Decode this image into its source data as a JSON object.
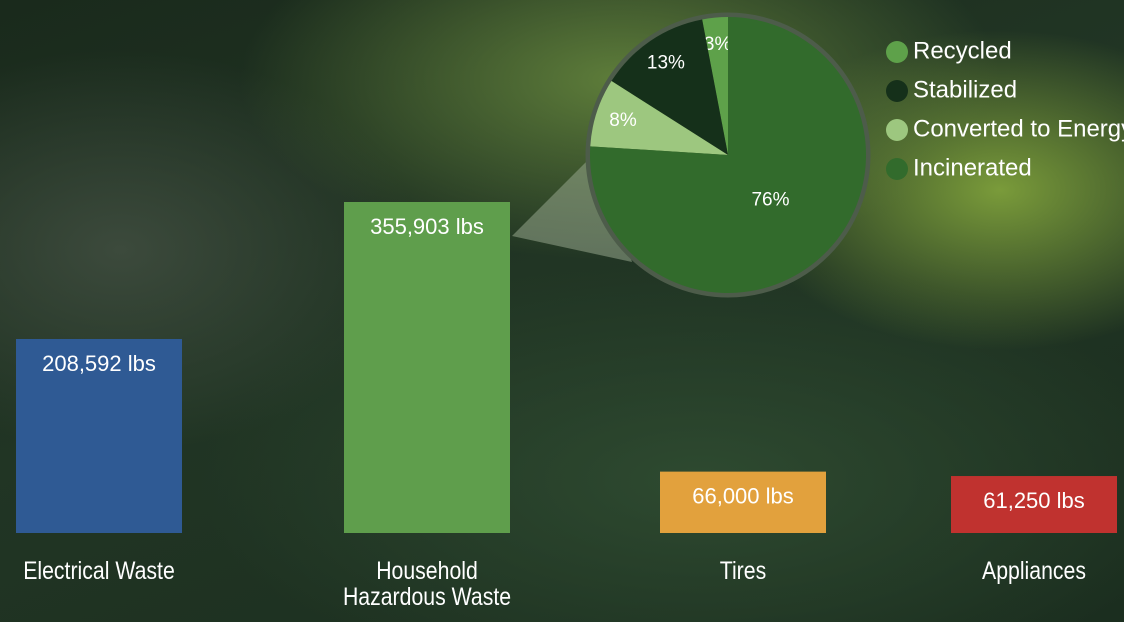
{
  "chart_data": [
    {
      "type": "bar",
      "categories": [
        "Electrical Waste",
        "Household Hazardous Waste",
        "Tires",
        "Appliances"
      ],
      "values": [
        208592,
        355903,
        66000,
        61250
      ],
      "value_labels": [
        "208,592 lbs",
        "355,903 lbs",
        "66,000 lbs",
        "61,250 lbs"
      ],
      "colors": [
        "#2f5a94",
        "#5f9e4c",
        "#e2a13d",
        "#c0322f"
      ]
    },
    {
      "type": "pie",
      "categories": [
        "Recycled",
        "Stabilized",
        "Converted to Energy",
        "Incinerated"
      ],
      "values": [
        3,
        13,
        8,
        76
      ],
      "value_labels": [
        "3%",
        "13%",
        "8%",
        "76%"
      ],
      "colors": [
        "#5ea14a",
        "#15301a",
        "#9dc77f",
        "#326b2c"
      ]
    }
  ]
}
